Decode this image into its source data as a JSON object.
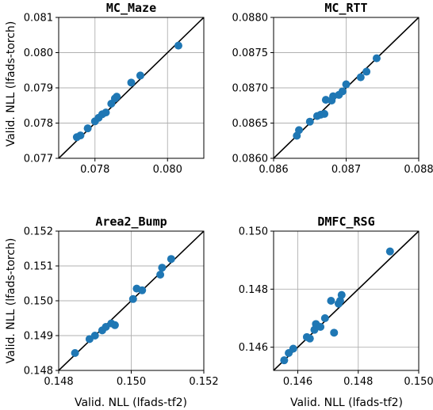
{
  "figure": {
    "xlabel": "Valid. NLL (lfads-tf2)",
    "ylabel": "Valid. NLL (lfads-torch)",
    "point_color": "#1f77b4"
  },
  "chart_data": [
    {
      "type": "scatter",
      "title": "MC_Maze",
      "xlim": [
        0.077,
        0.081
      ],
      "ylim": [
        0.077,
        0.081
      ],
      "xticks": [
        "0.078",
        "0.080"
      ],
      "xtick_values": [
        0.078,
        0.08
      ],
      "yticks": [
        "0.077",
        "0.078",
        "0.079",
        "0.080",
        "0.081"
      ],
      "ytick_values": [
        0.077,
        0.078,
        0.079,
        0.08,
        0.081
      ],
      "grid": true,
      "diagonal": true,
      "x": [
        0.0775,
        0.0776,
        0.0778,
        0.078,
        0.0781,
        0.0782,
        0.0783,
        0.07845,
        0.07855,
        0.0786,
        0.079,
        0.07925,
        0.0803
      ],
      "y": [
        0.0776,
        0.07765,
        0.07785,
        0.07805,
        0.07815,
        0.07825,
        0.0783,
        0.07855,
        0.0787,
        0.07875,
        0.07915,
        0.07935,
        0.0802
      ]
    },
    {
      "type": "scatter",
      "title": "MC_RTT",
      "xlim": [
        0.086,
        0.088
      ],
      "ylim": [
        0.086,
        0.088
      ],
      "xticks": [
        "0.086",
        "0.087",
        "0.088"
      ],
      "xtick_values": [
        0.086,
        0.087,
        0.088
      ],
      "yticks": [
        "0.0860",
        "0.0865",
        "0.0870",
        "0.0875",
        "0.0880"
      ],
      "ytick_values": [
        0.086,
        0.0865,
        0.087,
        0.0875,
        0.088
      ],
      "grid": true,
      "diagonal": true,
      "x": [
        0.08632,
        0.08635,
        0.0865,
        0.0866,
        0.08665,
        0.0867,
        0.08672,
        0.0868,
        0.08682,
        0.0869,
        0.08695,
        0.087,
        0.0872,
        0.08728,
        0.08742
      ],
      "y": [
        0.08632,
        0.0864,
        0.08652,
        0.0866,
        0.08662,
        0.08663,
        0.08683,
        0.08682,
        0.08688,
        0.0869,
        0.08695,
        0.08705,
        0.08715,
        0.08723,
        0.08742
      ]
    },
    {
      "type": "scatter",
      "title": "Area2_Bump",
      "xlim": [
        0.148,
        0.152
      ],
      "ylim": [
        0.148,
        0.152
      ],
      "xticks": [
        "0.148",
        "0.150",
        "0.152"
      ],
      "xtick_values": [
        0.148,
        0.15,
        0.152
      ],
      "yticks": [
        "0.148",
        "0.149",
        "0.150",
        "0.151",
        "0.152"
      ],
      "ytick_values": [
        0.148,
        0.149,
        0.15,
        0.151,
        0.152
      ],
      "grid": true,
      "diagonal": true,
      "x": [
        0.14845,
        0.14885,
        0.149,
        0.1492,
        0.1493,
        0.14945,
        0.14955,
        0.15005,
        0.15015,
        0.1503,
        0.1508,
        0.15085,
        0.1511
      ],
      "y": [
        0.1485,
        0.1489,
        0.149,
        0.14915,
        0.14925,
        0.14935,
        0.1493,
        0.15005,
        0.15035,
        0.1503,
        0.15075,
        0.15095,
        0.1512
      ]
    },
    {
      "type": "scatter",
      "title": "DMFC_RSG",
      "xlim": [
        0.1452,
        0.15
      ],
      "ylim": [
        0.1452,
        0.15
      ],
      "xticks": [
        "0.146",
        "0.148",
        "0.150"
      ],
      "xtick_values": [
        0.146,
        0.148,
        0.15
      ],
      "yticks": [
        "0.146",
        "0.148",
        "0.150"
      ],
      "ytick_values": [
        0.146,
        0.148,
        0.15
      ],
      "grid": true,
      "diagonal": true,
      "x": [
        0.14555,
        0.1457,
        0.14585,
        0.1463,
        0.1464,
        0.14655,
        0.1466,
        0.14675,
        0.1469,
        0.1471,
        0.1472,
        0.14735,
        0.1474,
        0.14745,
        0.14905
      ],
      "y": [
        0.14555,
        0.1458,
        0.14595,
        0.14635,
        0.1463,
        0.1466,
        0.1468,
        0.1467,
        0.147,
        0.1476,
        0.1465,
        0.1475,
        0.1476,
        0.1478,
        0.1493
      ]
    }
  ]
}
